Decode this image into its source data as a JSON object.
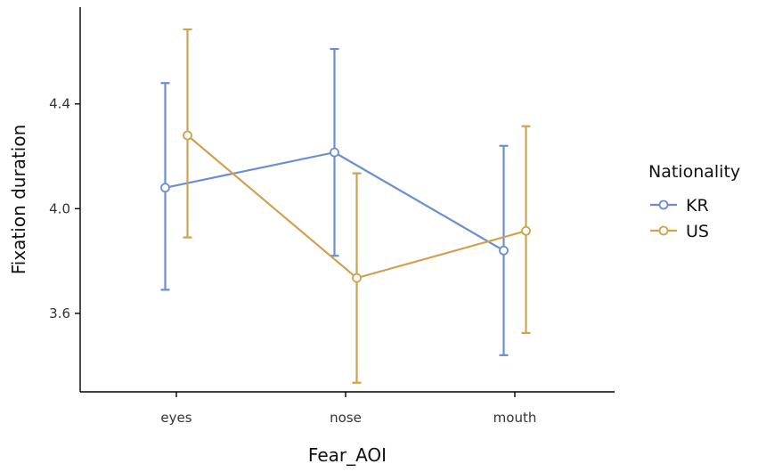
{
  "chart_data": {
    "type": "line",
    "title": "",
    "xlabel": "Fear_AOI",
    "ylabel": "Fixation duration",
    "categories": [
      "eyes",
      "nose",
      "mouth"
    ],
    "ylim": [
      3.3,
      4.77
    ],
    "yticks": [
      3.6,
      4.0,
      4.4
    ],
    "ytick_labels": [
      "3.6",
      "4.0",
      "4.4"
    ],
    "grid": false,
    "legend": {
      "title": "Nationality",
      "position": "right"
    },
    "series": [
      {
        "name": "KR",
        "color": "#6A8FD0",
        "values": [
          4.08,
          4.215,
          3.84
        ],
        "lower": [
          3.69,
          3.82,
          3.44
        ],
        "upper": [
          4.48,
          4.61,
          4.24
        ]
      },
      {
        "name": "US",
        "color": "#D0A24E",
        "values": [
          4.28,
          3.735,
          3.915
        ],
        "lower": [
          3.89,
          3.335,
          3.525
        ],
        "upper": [
          4.685,
          4.135,
          4.315
        ]
      }
    ]
  }
}
